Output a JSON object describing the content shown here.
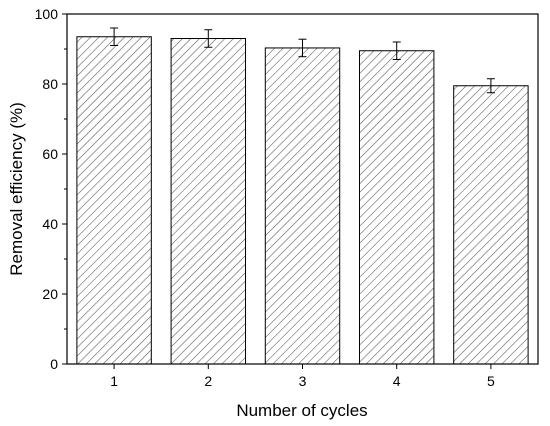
{
  "chart_data": {
    "type": "bar",
    "title": "",
    "xlabel": "Number of cycles",
    "ylabel": "Removal efficiency (%)",
    "categories": [
      "1",
      "2",
      "3",
      "4",
      "5"
    ],
    "values": [
      93.5,
      93.0,
      90.3,
      89.5,
      79.5
    ],
    "errors": [
      2.5,
      2.5,
      2.5,
      2.5,
      2.0
    ],
    "ylim": [
      0,
      100
    ],
    "yticks": [
      0,
      20,
      40,
      60,
      80,
      100
    ],
    "grid": false,
    "legend": "none",
    "bar_fill": "hatched",
    "colors": {
      "bar_stroke": "#000000",
      "hatch": "#555555",
      "background": "#ffffff"
    }
  }
}
